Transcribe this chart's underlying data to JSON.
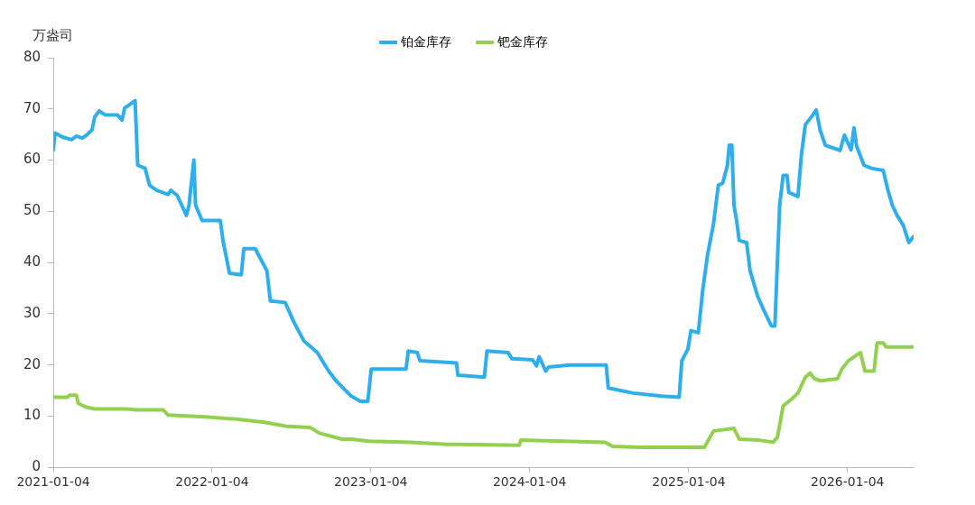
{
  "chart_data": {
    "type": "line",
    "ylabel": "万盎司",
    "legend": "top",
    "grid": false,
    "marker": "none",
    "line_style": "solid",
    "xlim": [
      "2021-01-04",
      "2026-06-05"
    ],
    "xticks": [
      "2021-01-04",
      "2022-01-04",
      "2023-01-04",
      "2024-01-04",
      "2025-01-04",
      "2026-01-04"
    ],
    "ylim": [
      0,
      80
    ],
    "yticks": [
      0,
      10,
      20,
      30,
      40,
      50,
      60,
      70,
      80
    ],
    "series": [
      {
        "name": "铂金库存",
        "color": "#2eaeea",
        "x": [
          "2021-01-04",
          "2021-01-08",
          "2021-01-25",
          "2021-02-15",
          "2021-02-26",
          "2021-03-12",
          "2021-03-23",
          "2021-04-03",
          "2021-04-09",
          "2021-04-19",
          "2021-05-04",
          "2021-06-01",
          "2021-06-11",
          "2021-06-17",
          "2021-06-28",
          "2021-07-11",
          "2021-07-17",
          "2021-08-03",
          "2021-08-13",
          "2021-08-30",
          "2021-09-25",
          "2021-10-01",
          "2021-10-16",
          "2021-11-06",
          "2021-11-12",
          "2021-11-23",
          "2021-11-27",
          "2021-12-12",
          "2022-01-23",
          "2022-01-29",
          "2022-02-13",
          "2022-03-12",
          "2022-03-18",
          "2022-04-13",
          "2022-05-10",
          "2022-05-18",
          "2022-06-21",
          "2022-07-12",
          "2022-08-03",
          "2022-09-03",
          "2022-09-29",
          "2022-10-16",
          "2022-11-20",
          "2022-12-11",
          "2022-12-28",
          "2023-01-05",
          "2023-03-26",
          "2023-03-31",
          "2023-04-21",
          "2023-04-27",
          "2023-07-20",
          "2023-07-23",
          "2023-09-22",
          "2023-09-28",
          "2023-11-16",
          "2023-11-24",
          "2024-01-11",
          "2024-01-20",
          "2024-01-26",
          "2024-02-10",
          "2024-02-17",
          "2024-04-05",
          "2024-06-28",
          "2024-07-03",
          "2024-08-29",
          "2024-11-03",
          "2024-12-13",
          "2024-12-19",
          "2025-01-02",
          "2025-01-09",
          "2025-01-26",
          "2025-02-05",
          "2025-02-16",
          "2025-03-02",
          "2025-03-13",
          "2025-03-23",
          "2025-04-03",
          "2025-04-07",
          "2025-04-13",
          "2025-04-18",
          "2025-04-24",
          "2025-04-30",
          "2025-05-17",
          "2025-05-25",
          "2025-06-11",
          "2025-06-26",
          "2025-07-13",
          "2025-07-21",
          "2025-08-01",
          "2025-08-09",
          "2025-08-18",
          "2025-08-22",
          "2025-09-12",
          "2025-09-20",
          "2025-09-29",
          "2025-10-16",
          "2025-10-24",
          "2025-11-02",
          "2025-11-14",
          "2025-12-18",
          "2025-12-28",
          "2026-01-12",
          "2026-01-19",
          "2026-01-25",
          "2026-02-11",
          "2026-02-28",
          "2026-03-27",
          "2026-04-07",
          "2026-04-17",
          "2026-04-28",
          "2026-05-12",
          "2026-05-25",
          "2026-06-05"
        ],
        "values": [
          62,
          65.3,
          64.5,
          64,
          64.7,
          64.3,
          65,
          65.9,
          68.4,
          69.6,
          68.8,
          68.8,
          67.8,
          70.2,
          70.8,
          71.6,
          59,
          58.4,
          55.1,
          54.1,
          53.3,
          54.1,
          53.1,
          49.2,
          51.2,
          60,
          51.2,
          48.2,
          48.2,
          44.3,
          37.9,
          37.6,
          42.7,
          42.7,
          38.4,
          32.5,
          32.2,
          28.2,
          24.7,
          22.4,
          18.8,
          16.9,
          13.9,
          12.9,
          12.9,
          19.2,
          19.2,
          22.7,
          22.4,
          20.8,
          20.4,
          18,
          17.6,
          22.7,
          22.4,
          21.2,
          21,
          19.8,
          21.6,
          18.8,
          19.6,
          20,
          20,
          15.5,
          14.5,
          13.9,
          13.7,
          20.8,
          23.1,
          26.7,
          26.3,
          34.5,
          41.4,
          47.6,
          55.1,
          55.5,
          59,
          62.9,
          62.9,
          51.2,
          48.2,
          44.3,
          43.9,
          38.4,
          33.5,
          30.6,
          27.6,
          27.6,
          51.2,
          57,
          57,
          53.7,
          52.9,
          61,
          66.9,
          68.8,
          69.8,
          65.9,
          62.9,
          61.9,
          64.9,
          62,
          66.3,
          62.7,
          59,
          58.4,
          58,
          54.1,
          51.2,
          49.2,
          47.3,
          43.9,
          45.1
        ]
      },
      {
        "name": "钯金库存",
        "color": "#92d050",
        "x": [
          "2021-01-04",
          "2021-02-05",
          "2021-02-11",
          "2021-02-26",
          "2021-03-02",
          "2021-03-19",
          "2021-04-09",
          "2021-06-22",
          "2021-07-13",
          "2021-09-14",
          "2021-09-25",
          "2021-12-27",
          "2022-03-01",
          "2022-05-04",
          "2022-06-25",
          "2022-08-17",
          "2022-09-07",
          "2022-10-30",
          "2022-11-20",
          "2022-12-31",
          "2023-04-06",
          "2023-06-29",
          "2023-12-11",
          "2023-12-15",
          "2024-06-26",
          "2024-07-13",
          "2024-09-14",
          "2025-02-09",
          "2025-03-02",
          "2025-04-18",
          "2025-04-30",
          "2025-06-15",
          "2025-07-17",
          "2025-07-27",
          "2025-08-09",
          "2025-08-28",
          "2025-09-12",
          "2025-09-29",
          "2025-10-10",
          "2025-10-20",
          "2025-11-04",
          "2025-12-12",
          "2025-12-22",
          "2026-01-06",
          "2026-01-23",
          "2026-02-03",
          "2026-02-13",
          "2026-03-06",
          "2026-03-13",
          "2026-03-27",
          "2026-04-03",
          "2026-06-05"
        ],
        "values": [
          13.7,
          13.7,
          14.1,
          14.1,
          12.5,
          11.8,
          11.4,
          11.4,
          11.2,
          11.2,
          10.2,
          9.8,
          9.4,
          8.8,
          8,
          7.8,
          6.7,
          5.5,
          5.5,
          5.1,
          4.9,
          4.5,
          4.3,
          5.3,
          4.9,
          4.1,
          3.9,
          3.9,
          7.1,
          7.6,
          5.5,
          5.3,
          4.9,
          5.9,
          12,
          13.3,
          14.5,
          17.6,
          18.4,
          17.3,
          16.9,
          17.3,
          19.2,
          20.8,
          21.8,
          22.4,
          18.8,
          18.8,
          24.3,
          24.3,
          23.5,
          23.5
        ]
      }
    ]
  }
}
